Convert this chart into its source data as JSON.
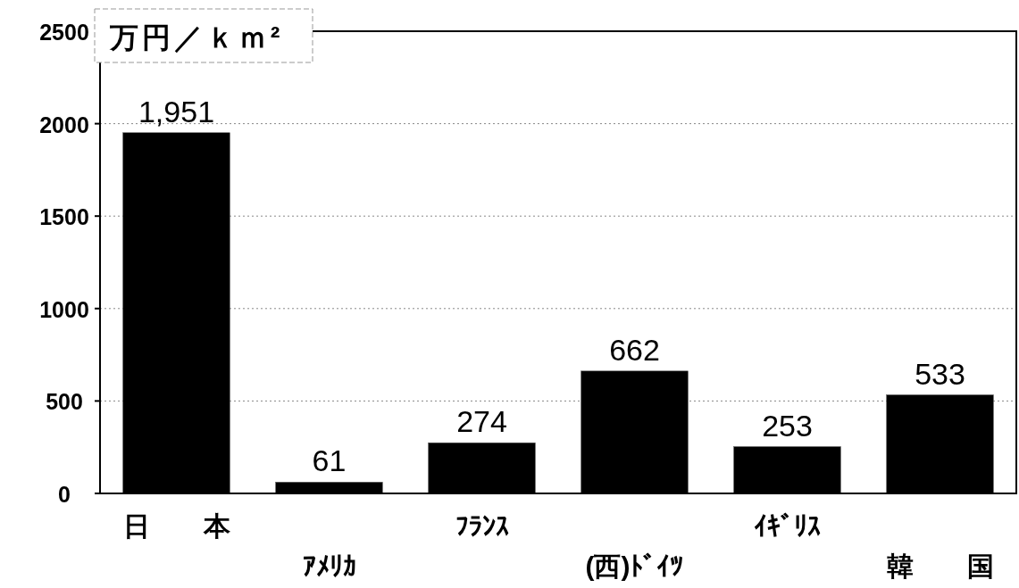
{
  "chart_data": {
    "type": "bar",
    "ylabel": "万円／ｋｍ²",
    "categories": [
      "日　　本",
      "ｱﾒﾘｶ",
      "ﾌﾗﾝｽ",
      "(西)ﾄﾞｲﾂ",
      "ｲｷﾞﾘｽ",
      "韓　　国"
    ],
    "values": [
      1951,
      61,
      274,
      662,
      253,
      533
    ],
    "value_labels": [
      "1,951",
      "61",
      "274",
      "662",
      "253",
      "533"
    ],
    "color": "#000000",
    "ylim": [
      0,
      2500
    ],
    "yticks": [
      0,
      500,
      1000,
      1500,
      2000,
      2500
    ],
    "grid": "y"
  }
}
